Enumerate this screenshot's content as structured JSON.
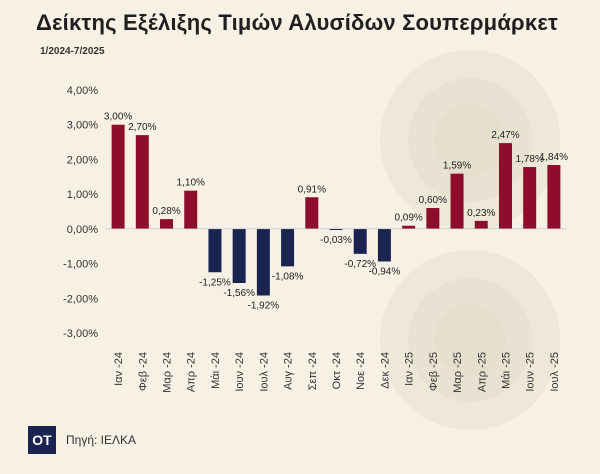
{
  "header": {
    "title": "Δείκτης Εξέλιξης Τιμών Αλυσίδων Σουπερμάρκετ",
    "subtitle": "1/2024-7/2025"
  },
  "footer": {
    "logo_text": "OT",
    "source": "Πηγή: ΙΕΛΚΑ"
  },
  "colors": {
    "positive": "#8e0d2c",
    "negative": "#1b2451",
    "background": "#f6f1e4",
    "decor_circle": "#e4ddcc"
  },
  "chart_data": {
    "type": "bar",
    "categories": [
      "Ιαν -24",
      "Φεβ -24",
      "Μαρ -24",
      "Απρ -24",
      "Μάι -24",
      "Ιουν -24",
      "Ιουλ -24",
      "Αυγ -24",
      "Σεπ -24",
      "Οκτ -24",
      "Νοε -24",
      "Δεκ -24",
      "Ιαν -25",
      "Φεβ -25",
      "Μαρ -25",
      "Απρ -25",
      "Μάι -25",
      "Ιουν -25",
      "Ιουλ -25"
    ],
    "values": [
      3.0,
      2.7,
      0.28,
      1.1,
      -1.25,
      -1.56,
      -1.92,
      -1.08,
      0.91,
      -0.03,
      -0.72,
      -0.94,
      0.09,
      0.6,
      1.59,
      0.23,
      2.47,
      1.78,
      1.84
    ],
    "data_labels": [
      "3,00%",
      "2,70%",
      "0,28%",
      "1,10%",
      "-1,25%",
      "-1,56%",
      "-1,92%",
      "-1,08%",
      "0,91%",
      "-0,03%",
      "-0,72%",
      "-0,94%",
      "0,09%",
      "0,60%",
      "1,59%",
      "0,23%",
      "2,47%",
      "1,78%",
      "1,84%"
    ],
    "yticks": [
      4,
      3,
      2,
      1,
      0,
      -1,
      -2,
      -3
    ],
    "ytick_labels": [
      "4,00%",
      "3,00%",
      "2,00%",
      "1,00%",
      "0,00%",
      "-1,00%",
      "-2,00%",
      "-3,00%"
    ],
    "ylim": [
      -3,
      4
    ],
    "grid": false,
    "legend": "none"
  }
}
